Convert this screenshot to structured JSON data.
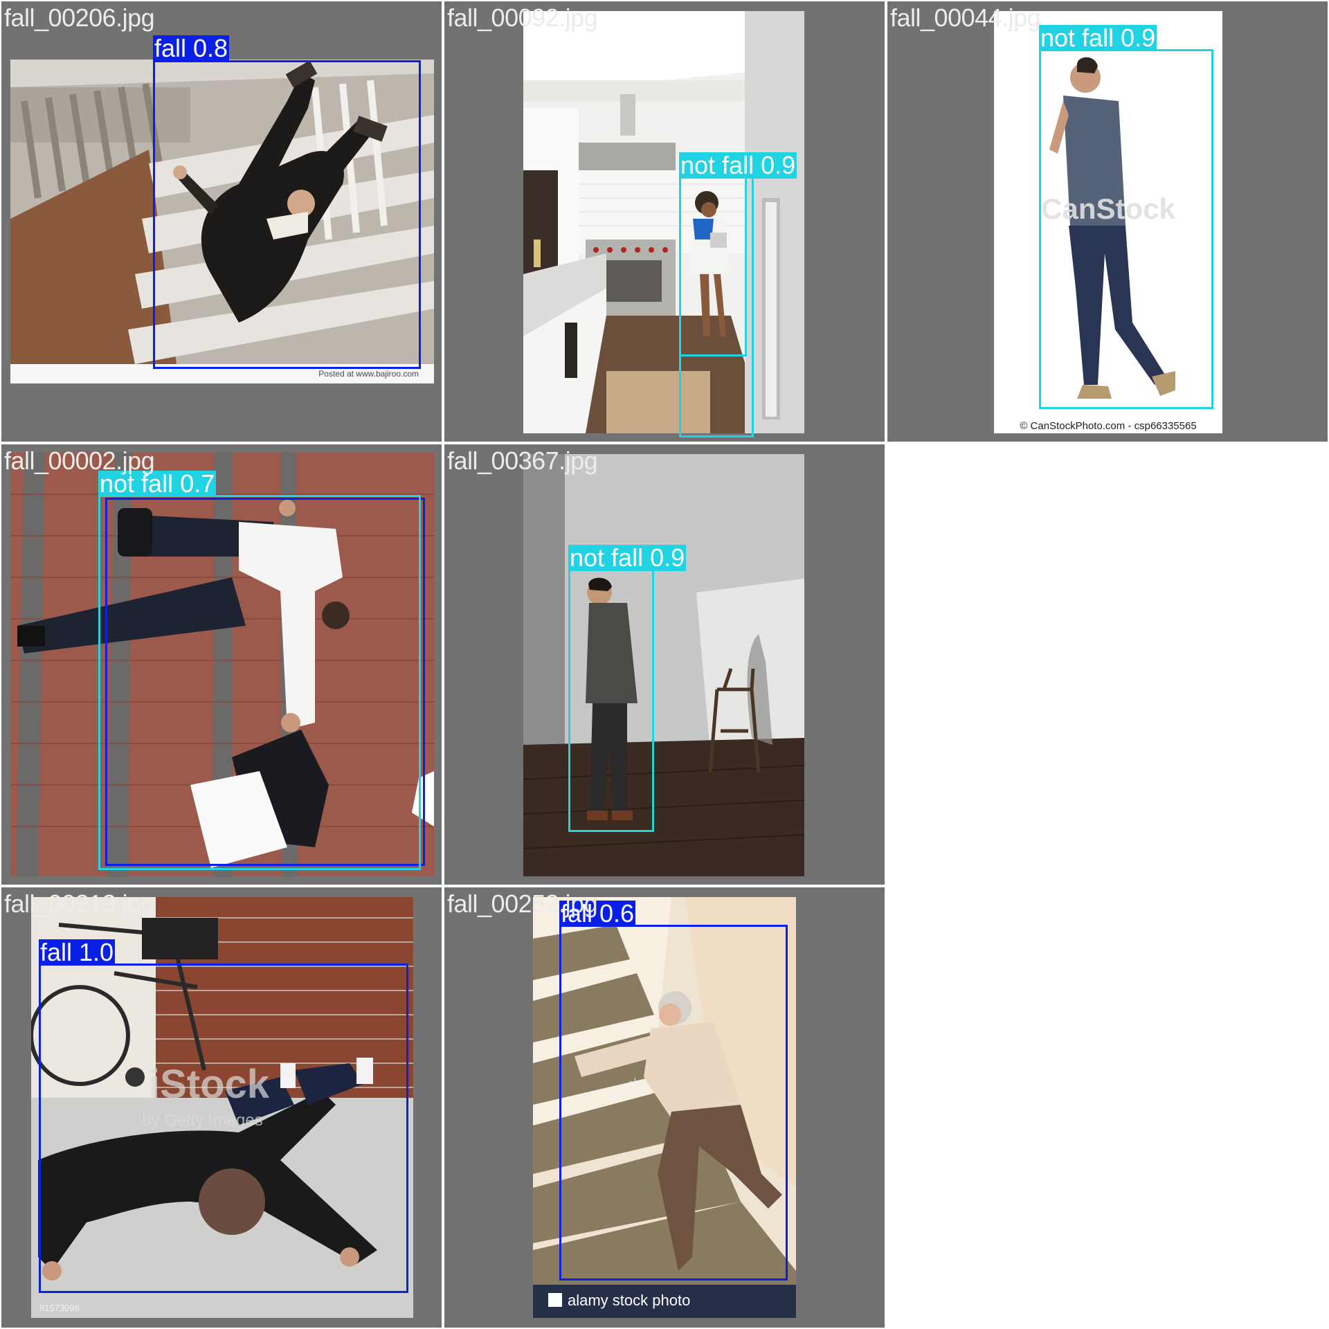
{
  "colors": {
    "fall": "#0a1fe8",
    "not_fall": "#1fd3e2",
    "cell_background": "#727272"
  },
  "tiles": [
    {
      "filename": "fall_00206.jpg",
      "detections": [
        {
          "tag": "fall 0.8",
          "class": "fall",
          "confidence": 0.8
        }
      ],
      "watermark": "Posted at www.bajiroo.com"
    },
    {
      "filename": "fall_00092.jpg",
      "detections": [
        {
          "tag": "not fall 0.9",
          "class": "not fall",
          "confidence": 0.9
        }
      ]
    },
    {
      "filename": "fall_00044.jpg",
      "detections": [
        {
          "tag": "not fall 0.9",
          "class": "not fall",
          "confidence": 0.9
        }
      ],
      "watermark": "CanStock",
      "credit": "© CanStockPhoto.com - csp66335565"
    },
    {
      "filename": "fall_00002.jpg",
      "detections": [
        {
          "tag": "not fall 0.7",
          "class": "not fall",
          "confidence": 0.7
        }
      ]
    },
    {
      "filename": "fall_00367.jpg",
      "detections": [
        {
          "tag": "not fall 0.9",
          "class": "not fall",
          "confidence": 0.9
        }
      ]
    },
    {
      "filename": "fall_00213.jpg",
      "detections": [
        {
          "tag": "fall 1.0",
          "class": "fall",
          "confidence": 1.0
        }
      ],
      "watermark": "iStock",
      "watermark_sub": "by Getty Images",
      "credit": "81573098"
    },
    {
      "filename": "fall_00252.jpg",
      "detections": [
        {
          "tag": "fall 0.6",
          "class": "fall",
          "confidence": 0.6
        }
      ],
      "watermark": "alamy",
      "credit": "alamy stock photo"
    }
  ]
}
